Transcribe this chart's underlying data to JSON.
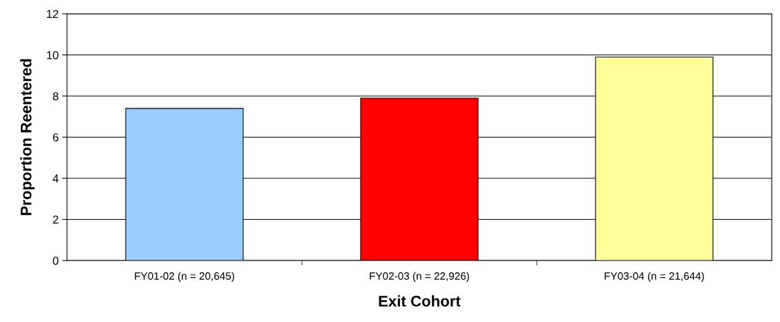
{
  "chart_data": {
    "type": "bar",
    "xlabel": "Exit Cohort",
    "ylabel": "Proportion Reentered",
    "categories": [
      "FY01-02 (n = 20,645)",
      "FY02-03 (n = 22,926)",
      "FY03-04 (n = 21,644)"
    ],
    "values": [
      7.4,
      7.9,
      9.9
    ],
    "colors": [
      "#99ccff",
      "#ff0000",
      "#ffff99"
    ],
    "ylim": [
      0,
      12
    ],
    "yticks": [
      0,
      2,
      4,
      6,
      8,
      10,
      12
    ],
    "grid": "y"
  }
}
